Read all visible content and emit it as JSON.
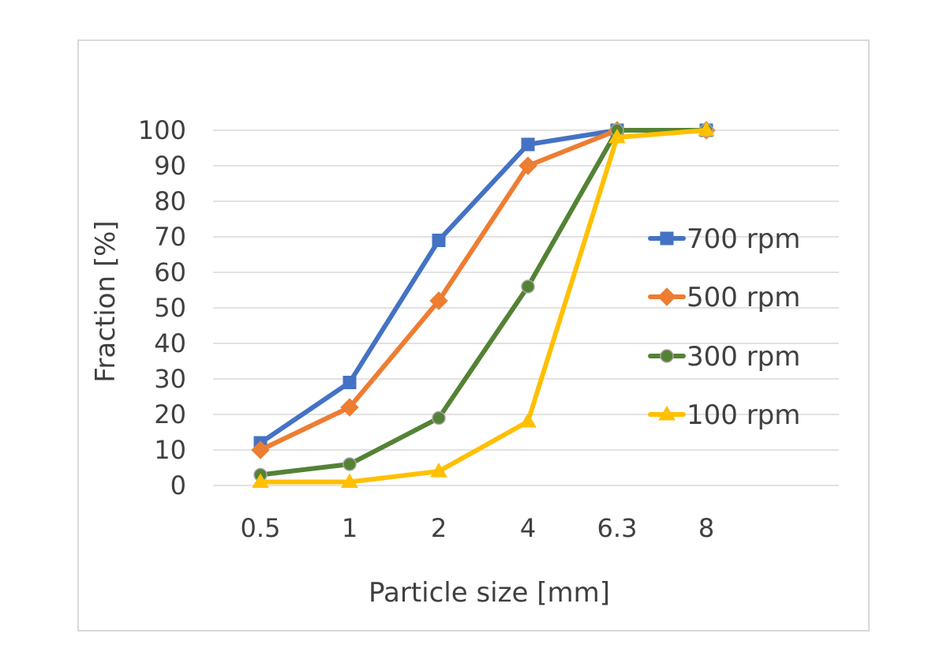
{
  "chart_data": {
    "type": "line",
    "title": "",
    "xlabel": "Particle size [mm]",
    "ylabel": "Fraction [%]",
    "categories": [
      "0.5",
      "1",
      "2",
      "4",
      "6.3",
      "8"
    ],
    "ylim": [
      0,
      100
    ],
    "yticks": [
      "0",
      "10",
      "20",
      "30",
      "40",
      "50",
      "60",
      "70",
      "80",
      "90",
      "100"
    ],
    "grid": true,
    "legend_position": "right",
    "series": [
      {
        "name": "700 rpm",
        "color": "#4472c4",
        "marker": "square",
        "values": [
          12,
          29,
          69,
          96,
          100,
          100
        ]
      },
      {
        "name": "500 rpm",
        "color": "#ed7d31",
        "marker": "diamond",
        "values": [
          10,
          22,
          52,
          90,
          100,
          100
        ]
      },
      {
        "name": "300 rpm",
        "color": "#548235",
        "marker": "circle",
        "values": [
          3,
          6,
          19,
          56,
          100,
          100
        ]
      },
      {
        "name": "100 rpm",
        "color": "#ffc000",
        "marker": "triangle",
        "values": [
          1,
          1,
          4,
          18,
          98,
          100
        ]
      }
    ]
  }
}
